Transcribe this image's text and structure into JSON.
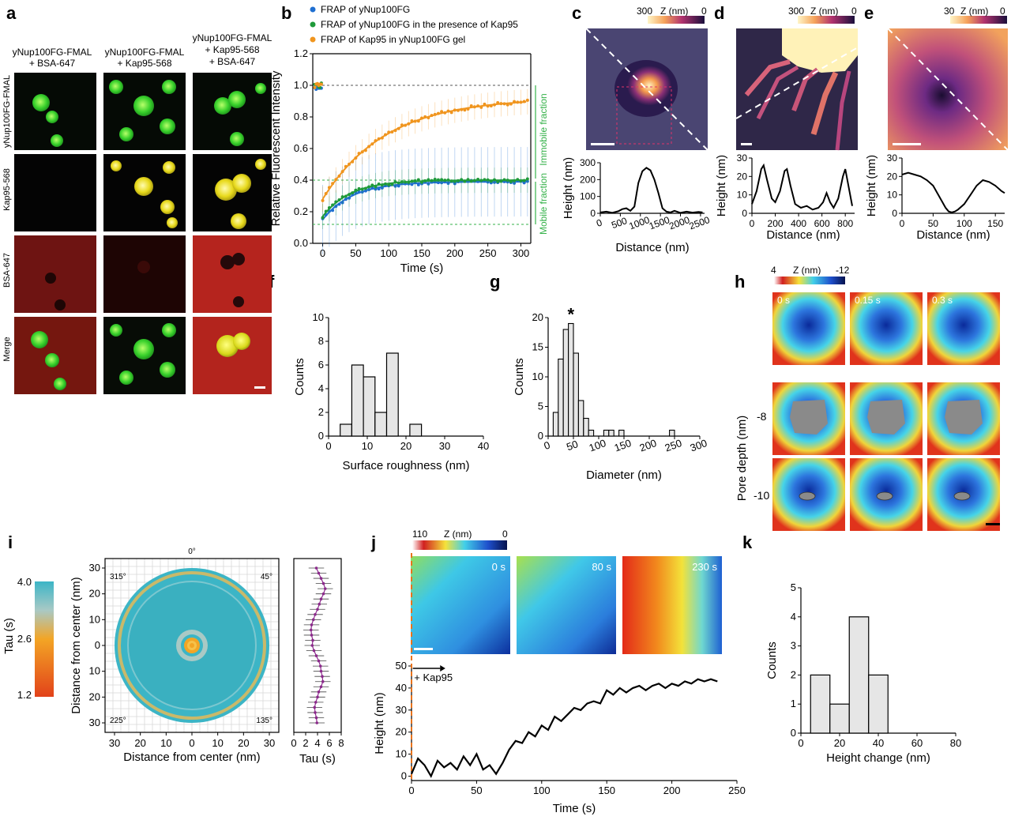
{
  "panel_letters": [
    "a",
    "b",
    "c",
    "d",
    "e",
    "f",
    "g",
    "h",
    "i",
    "j",
    "k"
  ],
  "colors": {
    "green_micro": "#2fbf2a",
    "yellow_micro": "#e6d21c",
    "red_micro": "#b3211d",
    "series_blue": "#1f6fd1",
    "series_green": "#1f9a3a",
    "series_orange": "#f0951e",
    "bar_fill": "#e6e6e6",
    "dash_green": "#36b24a"
  },
  "panel_a": {
    "col_headers": [
      [
        "yNup100FG-FMAL",
        "+ BSA-647"
      ],
      [
        "yNup100FG-FMAL",
        "+ Kap95-568"
      ],
      [
        "yNup100FG-FMAL",
        "+ Kap95-568",
        "+ BSA-647"
      ]
    ],
    "row_labels": [
      "yNup100FG-FMAL",
      "Kap95-568",
      "BSA-647",
      "Merge"
    ]
  },
  "panel_h": {
    "colorbar_ticks": [
      "4",
      "Z (nm)",
      "-12"
    ],
    "time_labels": [
      "0 s",
      "0.15 s",
      "0.3 s"
    ],
    "ylabel": "Pore depth (nm)",
    "row_ticks": [
      "-8",
      "-10"
    ]
  },
  "panel_i": {
    "colorbar_title": "Tau (s)",
    "colorbar_ticks": [
      "4.0",
      "2.6",
      "1.2"
    ],
    "angles": [
      "0°",
      "45°",
      "135°",
      "225°",
      "315°"
    ]
  },
  "panel_j": {
    "colorbar_ticks": [
      "110",
      "Z (nm)",
      "0"
    ],
    "time_labels": [
      "0 s",
      "80 s",
      "230 s"
    ],
    "annotation": "+ Kap95"
  },
  "chart_data": [
    {
      "id": "b",
      "type": "scatter",
      "title": "",
      "xlabel": "Time (s)",
      "ylabel": "Relative Fluorescent Intensity",
      "xlim": [
        -15,
        315
      ],
      "ylim": [
        0,
        1.2
      ],
      "xticks": [
        0,
        50,
        100,
        150,
        200,
        250,
        300
      ],
      "yticks": [
        0.0,
        0.2,
        0.4,
        0.6,
        0.8,
        1.0,
        1.2
      ],
      "legend": [
        "FRAP of yNup100FG",
        "FRAP of yNup100FG in the presence of Kap95",
        "FRAP of Kap95 in yNup100FG gel"
      ],
      "series": [
        {
          "name": "FRAP of yNup100FG",
          "color": "#1f6fd1",
          "baseline": 0.15,
          "plateau": 0.39,
          "tau": 45,
          "pre": 0.99
        },
        {
          "name": "FRAP of yNup100FG in the presence of Kap95",
          "color": "#1f9a3a",
          "baseline": 0.17,
          "plateau": 0.4,
          "tau": 42,
          "pre": 1.0
        },
        {
          "name": "FRAP of Kap95 in yNup100FG gel",
          "color": "#f0951e",
          "baseline": 0.28,
          "plateau": 0.92,
          "tau": 95,
          "pre": 1.0
        }
      ],
      "annotations": [
        "Immobile fraction",
        "Mobile fraction"
      ],
      "ref_lines": [
        1.0,
        0.4,
        0.12
      ]
    },
    {
      "id": "c",
      "type": "line",
      "xlabel": "Distance (nm)",
      "ylabel": "Height (nm)",
      "colorbar_ticks": [
        "300",
        "Z (nm)",
        "0"
      ],
      "xlim": [
        0,
        2600
      ],
      "ylim": [
        0,
        300
      ],
      "xticks": [
        0,
        500,
        1000,
        1500,
        2000,
        2500
      ],
      "yticks": [
        0,
        100,
        200,
        300
      ],
      "x": [
        0,
        150,
        300,
        450,
        550,
        650,
        750,
        850,
        950,
        1050,
        1150,
        1250,
        1350,
        1450,
        1550,
        1650,
        1750,
        1850,
        2000,
        2150,
        2300,
        2450,
        2550
      ],
      "y": [
        5,
        10,
        3,
        12,
        25,
        30,
        15,
        40,
        180,
        250,
        270,
        255,
        200,
        120,
        30,
        10,
        5,
        15,
        3,
        10,
        4,
        8,
        5
      ]
    },
    {
      "id": "d",
      "type": "line",
      "xlabel": "Distance (nm)",
      "ylabel": "Height (nm)",
      "colorbar_ticks": [
        "300",
        "Z (nm)",
        "0"
      ],
      "xlim": [
        0,
        880
      ],
      "ylim": [
        0,
        30
      ],
      "xticks": [
        0,
        200,
        400,
        600,
        800
      ],
      "yticks": [
        0,
        10,
        20,
        30
      ],
      "x": [
        0,
        40,
        80,
        100,
        130,
        170,
        200,
        240,
        280,
        300,
        330,
        370,
        420,
        470,
        520,
        570,
        610,
        640,
        670,
        700,
        740,
        780,
        800,
        830,
        860
      ],
      "y": [
        5,
        12,
        24,
        26,
        18,
        8,
        6,
        12,
        23,
        24,
        15,
        5,
        3,
        4,
        2,
        3,
        6,
        11,
        6,
        3,
        8,
        20,
        24,
        14,
        4
      ]
    },
    {
      "id": "e",
      "type": "line",
      "xlabel": "Distance (nm)",
      "ylabel": "Height (nm)",
      "colorbar_ticks": [
        "30",
        "Z (nm)",
        "0"
      ],
      "xlim": [
        0,
        165
      ],
      "ylim": [
        0,
        30
      ],
      "xticks": [
        0,
        50,
        100,
        150
      ],
      "yticks": [
        0,
        10,
        20,
        30
      ],
      "x": [
        0,
        10,
        20,
        30,
        40,
        50,
        60,
        70,
        75,
        80,
        85,
        90,
        100,
        110,
        120,
        130,
        140,
        150,
        160,
        165
      ],
      "y": [
        21,
        22,
        21,
        20,
        18,
        15,
        9,
        3,
        1,
        0.5,
        1,
        2,
        5,
        10,
        15,
        18,
        17,
        15,
        12,
        11
      ]
    },
    {
      "id": "f",
      "type": "bar",
      "xlabel": "Surface roughness (nm)",
      "ylabel": "Counts",
      "xlim": [
        0,
        40
      ],
      "ylim": [
        0,
        10
      ],
      "xticks": [
        0,
        10,
        20,
        30,
        40
      ],
      "yticks": [
        0,
        2,
        4,
        6,
        8,
        10
      ],
      "bin_edges": [
        0,
        3,
        6,
        9,
        12,
        15,
        18,
        21,
        24
      ],
      "values": [
        0,
        1,
        6,
        5,
        2,
        7,
        0,
        1
      ]
    },
    {
      "id": "g",
      "type": "bar",
      "xlabel": "Diameter (nm)",
      "ylabel": "Counts",
      "annotation": "*",
      "xlim": [
        0,
        300
      ],
      "ylim": [
        0,
        20
      ],
      "xticks": [
        0,
        50,
        100,
        150,
        200,
        250,
        300
      ],
      "yticks": [
        0,
        5,
        10,
        15,
        20
      ],
      "bin_width": 10,
      "bin_start": 10,
      "values": [
        4,
        13,
        18,
        19,
        14,
        6,
        3,
        1,
        0,
        0,
        1,
        1,
        0,
        1,
        0,
        0,
        0,
        0,
        0,
        0,
        0,
        0,
        0,
        1,
        0
      ]
    },
    {
      "id": "i",
      "type": "line",
      "xlabel": "Tau (s)",
      "ylabel": "",
      "panel_xlabel": "Distance from center (nm)",
      "panel_ylabel": "Distance from center (nm)",
      "radial_ticks": [
        "30",
        "20",
        "10",
        "0",
        "10",
        "20",
        "30"
      ],
      "xlim": [
        0,
        8
      ],
      "xticks": [
        0,
        2,
        4,
        6,
        8
      ],
      "y": [
        30,
        28,
        26,
        24,
        22,
        20,
        18,
        16,
        14,
        12,
        10,
        8,
        6,
        4,
        2,
        0,
        -2,
        -4,
        -6,
        -8,
        -10,
        -12,
        -14,
        -16,
        -18,
        -20,
        -22,
        -24,
        -26,
        -28,
        -30
      ],
      "x": [
        3.8,
        4.2,
        4.6,
        5.0,
        5.3,
        5.0,
        4.6,
        4.3,
        4.0,
        3.6,
        3.3,
        3.0,
        2.9,
        3.0,
        3.2,
        3.1,
        3.4,
        3.8,
        4.2,
        4.5,
        4.6,
        4.8,
        4.9,
        4.6,
        4.2,
        4.0,
        3.7,
        3.5,
        3.6,
        3.8,
        3.9
      ]
    },
    {
      "id": "j",
      "type": "line",
      "xlabel": "Time (s)",
      "ylabel": "Height (nm)",
      "xlim": [
        0,
        250
      ],
      "ylim": [
        -2,
        50
      ],
      "xticks": [
        0,
        50,
        100,
        150,
        200,
        250
      ],
      "yticks": [
        0,
        10,
        20,
        30,
        40,
        50
      ],
      "x": [
        0,
        5,
        10,
        15,
        20,
        25,
        30,
        35,
        40,
        45,
        50,
        55,
        60,
        65,
        70,
        75,
        80,
        85,
        90,
        95,
        100,
        105,
        110,
        115,
        120,
        125,
        130,
        135,
        140,
        145,
        150,
        155,
        160,
        165,
        170,
        175,
        180,
        185,
        190,
        195,
        200,
        205,
        210,
        215,
        220,
        225,
        230,
        235
      ],
      "y": [
        1,
        8,
        5,
        0,
        7,
        4,
        6,
        3,
        9,
        5,
        10,
        3,
        5,
        1,
        6,
        12,
        16,
        15,
        20,
        18,
        23,
        21,
        27,
        25,
        28,
        31,
        30,
        33,
        34,
        33,
        39,
        37,
        40,
        38,
        40,
        41,
        39,
        41,
        42,
        40,
        42,
        41,
        43,
        42,
        44,
        43,
        44,
        43
      ]
    },
    {
      "id": "k",
      "type": "bar",
      "xlabel": "Height change (nm)",
      "ylabel": "Counts",
      "xlim": [
        0,
        80
      ],
      "ylim": [
        0,
        5
      ],
      "xticks": [
        0,
        20,
        40,
        60,
        80
      ],
      "yticks": [
        0,
        1,
        2,
        3,
        4,
        5
      ],
      "bin_edges": [
        5,
        15,
        25,
        35,
        45
      ],
      "values": [
        2,
        1,
        4,
        2
      ]
    }
  ]
}
